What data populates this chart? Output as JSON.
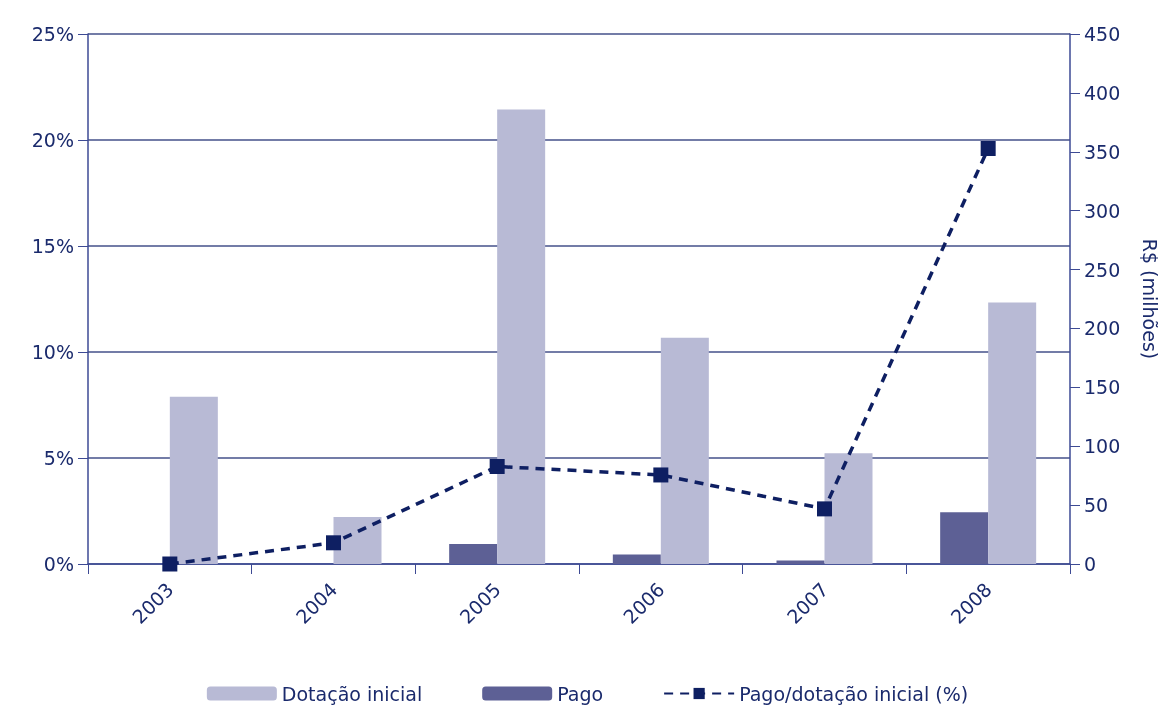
{
  "chart_data": {
    "type": "bar",
    "categories": [
      "2003",
      "2004",
      "2005",
      "2006",
      "2007",
      "2008"
    ],
    "series": [
      {
        "name": "Dotação inicial",
        "color": "#b8bad5",
        "axis": "y2",
        "values": [
          142,
          40,
          386,
          192,
          94,
          222
        ]
      },
      {
        "name": "Pago",
        "color": "#5d6095",
        "axis": "y2",
        "values": [
          0,
          0,
          17,
          8,
          3,
          44
        ]
      },
      {
        "name": "Pago/dotação inicial (%)",
        "type": "line",
        "color": "#0e1f62",
        "marker": "square",
        "line_style": "dashed",
        "values": [
          0.0,
          1.0,
          4.6,
          4.2,
          2.6,
          19.6
        ]
      }
    ],
    "ylim": [
      0,
      25
    ],
    "yticks": [
      {
        "value": 0,
        "label": "0%"
      },
      {
        "value": 5,
        "label": "5%"
      },
      {
        "value": 10,
        "label": "10%"
      },
      {
        "value": 15,
        "label": "15%"
      },
      {
        "value": 20,
        "label": "20%"
      },
      {
        "value": 25,
        "label": "25%"
      }
    ],
    "y2label": "R$ (milhões)",
    "y2lim": [
      0,
      450
    ],
    "y2ticks": [
      0,
      50,
      100,
      150,
      200,
      250,
      300,
      350,
      400,
      450
    ],
    "grid": "y",
    "legend": "bottom"
  }
}
